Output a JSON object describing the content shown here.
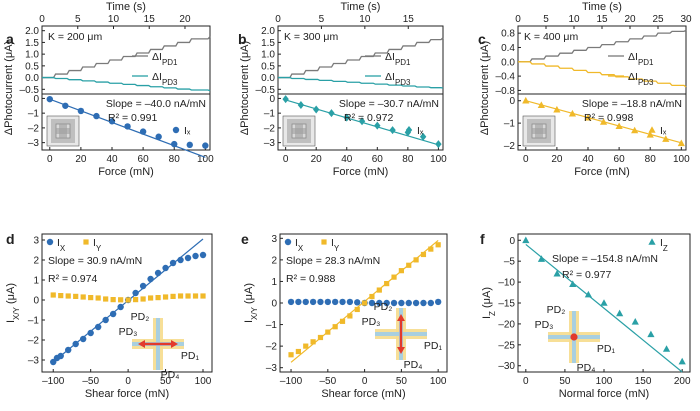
{
  "colors": {
    "gray": "#7a7a7a",
    "teal": "#2aa0a6",
    "blue": "#2e6db4",
    "gold": "#f0b92a",
    "red": "#e23a2c",
    "arm_yellow": "#f6dc8c",
    "arm_blue": "#a8cfe0",
    "axis": "#222222"
  },
  "chart_data": [
    {
      "panel": "a",
      "type": "line",
      "top": {
        "xlabel": "Time (s)",
        "xlim": [
          0,
          23.5
        ],
        "xticks": [
          "0",
          "5",
          "10",
          "15",
          "20"
        ],
        "ylabel": "",
        "ylim": [
          -0.7,
          2.2
        ],
        "yticks": [
          "-0.5",
          "0.0",
          "0.5",
          "1.0",
          "1.5",
          "2.0"
        ],
        "annotation": "K = 200 μm",
        "series": [
          {
            "name": "ΔI_PD1",
            "color": "gray",
            "x": [
              0,
              1.9,
              3.8,
              5.7,
              7.6,
              9.5,
              11.4,
              13.3,
              15.2,
              17.1,
              19.0,
              20.9,
              23.5
            ],
            "values": [
              0,
              0.15,
              0.3,
              0.45,
              0.6,
              0.75,
              0.9,
              1.05,
              1.2,
              1.35,
              1.5,
              1.65,
              1.75
            ]
          },
          {
            "name": "ΔI_PD3",
            "color": "teal",
            "x": [
              0,
              1.9,
              3.8,
              5.7,
              7.6,
              9.5,
              11.4,
              13.3,
              15.2,
              17.1,
              19.0,
              20.9,
              23.5
            ],
            "values": [
              0,
              -0.04,
              -0.09,
              -0.14,
              -0.19,
              -0.24,
              -0.29,
              -0.34,
              -0.39,
              -0.44,
              -0.49,
              -0.53,
              -0.56
            ]
          }
        ]
      },
      "bottom": {
        "type": "scatter",
        "xlabel": "Force (mN)",
        "xlim": [
          -5,
          103
        ],
        "xticks": [
          "0",
          "20",
          "40",
          "60",
          "80",
          "100"
        ],
        "ylabel": "",
        "ylim": [
          -3.5,
          0.3
        ],
        "yticks": [
          "-3",
          "-2",
          "-1",
          "0"
        ],
        "slope_label": "Slope = –40.0 nA/mN",
        "r2_label": "R² = 0.991",
        "legend": "Iₓ",
        "marker": "circle",
        "color": "blue",
        "x": [
          0,
          10,
          20,
          30,
          40,
          50,
          60,
          70,
          80,
          90,
          100
        ],
        "values": [
          -0.05,
          -0.5,
          -0.85,
          -1.2,
          -1.55,
          -1.9,
          -2.25,
          -2.6,
          -3.1,
          -3.15,
          -3.2
        ],
        "fit": [
          [
            0,
            -0.05
          ],
          [
            100,
            -4.0
          ]
        ]
      },
      "ylabel_shared": "ΔPhotocurrent (μA)"
    },
    {
      "panel": "b",
      "type": "line",
      "top": {
        "xlabel": "Time (s)",
        "xlim": [
          0,
          19
        ],
        "xticks": [
          "0",
          "5",
          "10",
          "15"
        ],
        "ylabel": "",
        "ylim": [
          -0.7,
          2.2
        ],
        "yticks": [
          "-0.5",
          "0.0",
          "0.5",
          "1.0",
          "1.5",
          "2.0"
        ],
        "annotation": "K = 300 μm",
        "series": [
          {
            "name": "ΔI_PD1",
            "color": "gray",
            "x": [
              0,
              1.6,
              3.2,
              4.8,
              6.4,
              8.0,
              9.6,
              11.2,
              12.8,
              14.4,
              16.0,
              17.6,
              19
            ],
            "values": [
              0,
              0.15,
              0.3,
              0.45,
              0.6,
              0.75,
              0.9,
              1.05,
              1.2,
              1.35,
              1.5,
              1.62,
              1.7
            ]
          },
          {
            "name": "ΔI_PD3",
            "color": "teal",
            "x": [
              0,
              1.6,
              3.2,
              4.8,
              6.4,
              8.0,
              9.6,
              11.2,
              12.8,
              14.4,
              16.0,
              17.6,
              19
            ],
            "values": [
              0,
              -0.04,
              -0.08,
              -0.12,
              -0.16,
              -0.2,
              -0.24,
              -0.28,
              -0.32,
              -0.36,
              -0.4,
              -0.43,
              -0.45
            ]
          }
        ]
      },
      "bottom": {
        "type": "scatter",
        "xlabel": "Force (mN)",
        "xlim": [
          -5,
          103
        ],
        "xticks": [
          "0",
          "20",
          "40",
          "60",
          "80",
          "100"
        ],
        "ylabel": "",
        "ylim": [
          -3.5,
          0.3
        ],
        "yticks": [
          "-3",
          "-2",
          "-1",
          "0"
        ],
        "slope_label": "Slope = –30.7 nA/mN",
        "r2_label": "R² = 0.972",
        "legend": "Iₓ",
        "marker": "diamond",
        "color": "teal",
        "x": [
          0,
          10,
          20,
          30,
          40,
          50,
          60,
          70,
          80,
          90,
          100
        ],
        "values": [
          -0.05,
          -0.45,
          -0.75,
          -1.0,
          -1.3,
          -1.55,
          -1.85,
          -2.15,
          -2.3,
          -2.6,
          -3.1
        ],
        "fit": [
          [
            0,
            -0.1
          ],
          [
            100,
            -3.15
          ]
        ]
      },
      "ylabel_shared": "ΔPhotocurrent (μA)"
    },
    {
      "panel": "c",
      "type": "line",
      "top": {
        "xlabel": "Time (s)",
        "xlim": [
          0,
          30
        ],
        "xticks": [
          "0",
          "5",
          "10",
          "15",
          "20",
          "25",
          "30"
        ],
        "ylabel": "",
        "ylim": [
          -0.9,
          1.0
        ],
        "yticks": [
          "-0.8",
          "-0.4",
          "0.0",
          "0.4",
          "0.8"
        ],
        "annotation": "K = 400 μm",
        "series": [
          {
            "name": "ΔI_PD1",
            "color": "gray",
            "x": [
              0,
              2.5,
              5,
              7.5,
              10,
              12.5,
              15,
              17.5,
              20,
              22.5,
              25,
              27.5,
              30
            ],
            "values": [
              0,
              0.08,
              0.16,
              0.24,
              0.32,
              0.4,
              0.48,
              0.56,
              0.64,
              0.72,
              0.8,
              0.85,
              0.88
            ]
          },
          {
            "name": "ΔI_PD3",
            "color": "gold",
            "x": [
              0,
              2.5,
              5,
              7.5,
              10,
              12.5,
              15,
              17.5,
              20,
              22.5,
              25,
              27.5,
              30
            ],
            "values": [
              0,
              -0.06,
              -0.12,
              -0.18,
              -0.24,
              -0.3,
              -0.36,
              -0.42,
              -0.48,
              -0.54,
              -0.6,
              -0.66,
              -0.7
            ]
          }
        ]
      },
      "bottom": {
        "type": "scatter",
        "xlabel": "Force (mN)",
        "xlim": [
          -5,
          103
        ],
        "xticks": [
          "0",
          "20",
          "40",
          "60",
          "80",
          "100"
        ],
        "ylabel": "",
        "ylim": [
          -2.2,
          0.3
        ],
        "yticks": [
          "-2",
          "-1",
          "0"
        ],
        "slope_label": "Slope = –18.8 nA/mN",
        "r2_label": "R² = 0.998",
        "legend": "Iₓ",
        "marker": "triangle",
        "color": "gold",
        "x": [
          0,
          10,
          20,
          30,
          40,
          50,
          60,
          70,
          80,
          90,
          100
        ],
        "values": [
          0,
          -0.2,
          -0.4,
          -0.58,
          -0.76,
          -0.95,
          -1.14,
          -1.33,
          -1.52,
          -1.71,
          -1.9
        ],
        "fit": [
          [
            0,
            0.0
          ],
          [
            100,
            -1.88
          ]
        ]
      },
      "ylabel_shared": "ΔPhotocurrent (μA)"
    },
    {
      "panel": "d",
      "type": "scatter",
      "xlabel": "Shear force (mN)",
      "ylabel": "I_X/Y (μA)",
      "xlim": [
        -115,
        112
      ],
      "xticks": [
        "-100",
        "-50",
        "0",
        "50",
        "100"
      ],
      "ylim": [
        -3.6,
        3.3
      ],
      "yticks": [
        "-3",
        "-2",
        "-1",
        "0",
        "1",
        "2",
        "3"
      ],
      "slope_label": "Slope = 30.9 nA/mN",
      "r2_label": "R² = 0.974",
      "series": [
        {
          "name": "I_X",
          "marker": "circle",
          "color": "blue",
          "x": [
            -100,
            -95,
            -90,
            -80,
            -70,
            -60,
            -50,
            -40,
            -30,
            -20,
            -10,
            0,
            10,
            20,
            30,
            40,
            50,
            60,
            70,
            80,
            90,
            100
          ],
          "values": [
            -3.1,
            -2.9,
            -2.8,
            -2.5,
            -2.2,
            -1.95,
            -1.65,
            -1.35,
            -1.0,
            -0.7,
            -0.35,
            0,
            0.35,
            0.7,
            1.05,
            1.35,
            1.6,
            1.85,
            2.0,
            2.1,
            2.2,
            2.25
          ]
        },
        {
          "name": "I_Y",
          "marker": "square",
          "color": "gold",
          "x": [
            -100,
            -90,
            -80,
            -70,
            -60,
            -50,
            -40,
            -30,
            -20,
            -10,
            0,
            10,
            20,
            30,
            40,
            50,
            60,
            70,
            80,
            90,
            100
          ],
          "values": [
            0.25,
            0.22,
            0.2,
            0.18,
            0.15,
            0.12,
            0.1,
            0.05,
            0.02,
            0.01,
            0,
            0.02,
            0.05,
            0.1,
            0.12,
            0.15,
            0.18,
            0.2,
            0.2,
            0.2,
            0.2
          ]
        }
      ],
      "fit": [
        [
          -100,
          -3.1
        ],
        [
          100,
          3.05
        ]
      ],
      "fit_color": "blue",
      "inset": {
        "labels": [
          "PD₂",
          "PD₃",
          "PD₁",
          "PD₄"
        ],
        "arrow": "horizontal"
      }
    },
    {
      "panel": "e",
      "type": "scatter",
      "xlabel": "Shear force (mN)",
      "ylabel": "I_X/Y (μA)",
      "xlim": [
        -115,
        112
      ],
      "xticks": [
        "-100",
        "-50",
        "0",
        "50",
        "100"
      ],
      "ylim": [
        -3.2,
        3.2
      ],
      "yticks": [
        "-3",
        "-2",
        "-1",
        "0",
        "1",
        "2",
        "3"
      ],
      "slope_label": "Slope = 28.3 nA/mN",
      "r2_label": "R² = 0.988",
      "series": [
        {
          "name": "I_X",
          "marker": "circle",
          "color": "blue",
          "x": [
            -100,
            -90,
            -80,
            -70,
            -60,
            -50,
            -40,
            -30,
            -20,
            -10,
            0,
            10,
            20,
            30,
            40,
            50,
            60,
            70,
            80,
            90,
            100
          ],
          "values": [
            0.05,
            0.05,
            0.05,
            0.05,
            0.05,
            0.05,
            0.05,
            0.05,
            0.05,
            0.03,
            0,
            0,
            0,
            0,
            0,
            0,
            0,
            0,
            0,
            0,
            0.05
          ]
        },
        {
          "name": "I_Y",
          "marker": "square",
          "color": "gold",
          "x": [
            -100,
            -90,
            -80,
            -70,
            -60,
            -50,
            -40,
            -30,
            -20,
            -10,
            0,
            10,
            20,
            30,
            40,
            50,
            60,
            70,
            80,
            90,
            100
          ],
          "values": [
            -2.4,
            -2.25,
            -2.0,
            -1.8,
            -1.6,
            -1.35,
            -1.1,
            -0.85,
            -0.6,
            -0.3,
            0,
            0.3,
            0.6,
            0.9,
            1.2,
            1.5,
            1.75,
            2.0,
            2.25,
            2.5,
            2.7
          ]
        }
      ],
      "fit": [
        [
          -100,
          -2.75
        ],
        [
          100,
          2.9
        ]
      ],
      "fit_color": "gold",
      "inset": {
        "labels": [
          "PD₂",
          "PD₃",
          "PD₁",
          "PD₄"
        ],
        "arrow": "vertical"
      }
    },
    {
      "panel": "f",
      "type": "scatter",
      "xlabel": "Normal force (mN)",
      "ylabel": "I_Z (μA)",
      "xlim": [
        -10,
        210
      ],
      "xticks": [
        "0",
        "50",
        "100",
        "150",
        "200"
      ],
      "ylim": [
        -31.5,
        1.5
      ],
      "yticks": [
        "0",
        "-5",
        "-10",
        "-15",
        "-20",
        "-25",
        "-30"
      ],
      "slope_label": "Slope = –154.8 nA/mN",
      "r2_label": "R² = 0.977",
      "series": [
        {
          "name": "I_Z",
          "marker": "triangle",
          "color": "teal",
          "x": [
            0,
            20,
            40,
            60,
            80,
            100,
            120,
            140,
            160,
            180,
            200
          ],
          "values": [
            0,
            -4.5,
            -8.0,
            -10.5,
            -13.0,
            -15.0,
            -17.5,
            -19.5,
            -22.5,
            -26.0,
            -29.0
          ]
        }
      ],
      "fit": [
        [
          0,
          -1.0
        ],
        [
          200,
          -31.5
        ]
      ],
      "fit_color": "teal",
      "inset": {
        "labels": [
          "PD₂",
          "PD₃",
          "PD₁",
          "PD₄"
        ],
        "arrow": "dot"
      }
    }
  ],
  "labels": {
    "panel_a": "a",
    "panel_b": "b",
    "panel_c": "c",
    "panel_d": "d",
    "panel_e": "e",
    "panel_f": "f"
  }
}
